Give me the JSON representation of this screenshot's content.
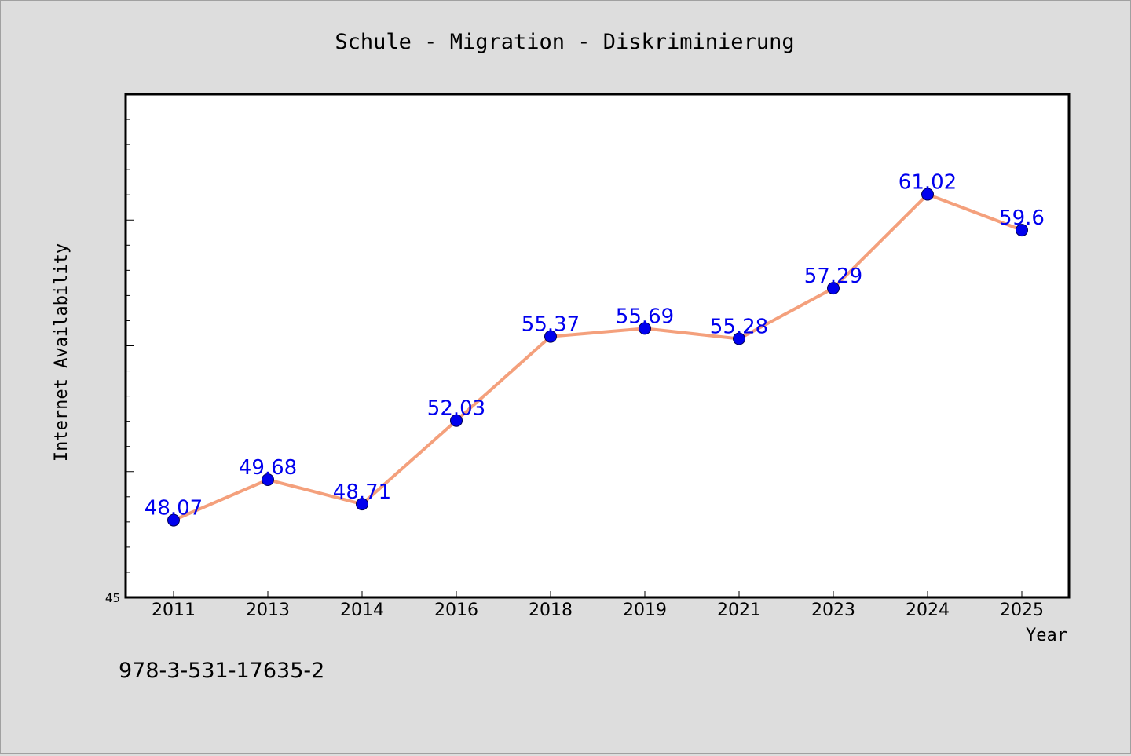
{
  "footer": {
    "isbn": "978-3-531-17635-2"
  },
  "colors": {
    "background": "#dddddd",
    "plot_background": "#ffffff",
    "line": "#f4a07c",
    "marker": "#0000ee",
    "data_label": "#0000ee"
  },
  "chart_data": {
    "type": "line",
    "title": "Schule - Migration - Diskriminierung",
    "xlabel": "Year",
    "ylabel": "Internet Availability",
    "categories": [
      "2011",
      "2013",
      "2014",
      "2016",
      "2018",
      "2019",
      "2021",
      "2023",
      "2024",
      "2025"
    ],
    "series": [
      {
        "values": [
          48.07,
          49.68,
          48.71,
          52.03,
          55.37,
          55.69,
          55.28,
          57.29,
          61.02,
          59.6
        ],
        "labels": [
          "48.07",
          "49.68",
          "48.71",
          "52.03",
          "55.37",
          "55.69",
          "55.28",
          "57.29",
          "61.02",
          "59.6"
        ]
      }
    ],
    "ylim": [
      45,
      65
    ],
    "yticks_labeled": [
      "45"
    ],
    "grid": false
  }
}
